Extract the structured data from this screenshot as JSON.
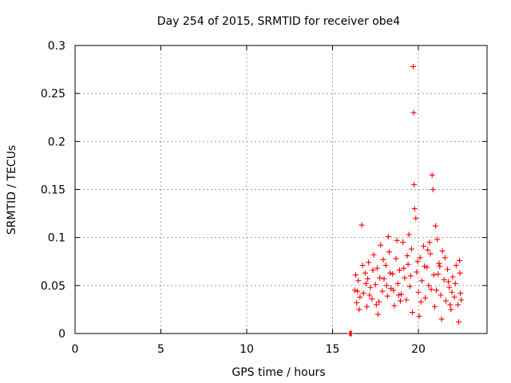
{
  "chart_data": {
    "type": "scatter",
    "title": "Day 254 of 2015, SRMTID for receiver obe4",
    "xlabel": "GPS time / hours",
    "ylabel": "SRMTID / TECUs",
    "xlim": [
      0,
      24
    ],
    "ylim": [
      0,
      0.3
    ],
    "grid": true,
    "marker": "+",
    "color": "#ff0000",
    "xticks": [
      0,
      5,
      10,
      15,
      20
    ],
    "xtick_labels": [
      "0",
      "5",
      "10",
      "15",
      "20"
    ],
    "yticks": [
      0,
      0.05,
      0.1,
      0.15,
      0.2,
      0.25,
      0.3
    ],
    "ytick_labels": [
      "0",
      "0.05",
      "0.1",
      "0.15",
      "0.2",
      "0.25",
      "0.3"
    ],
    "series": [
      {
        "name": "SRMTID",
        "points": [
          [
            16.0,
            0.0
          ],
          [
            16.05,
            0.0
          ],
          [
            16.1,
            0.0
          ],
          [
            16.3,
            0.045
          ],
          [
            16.4,
            0.032
          ],
          [
            16.5,
            0.055
          ],
          [
            16.6,
            0.038
          ],
          [
            16.7,
            0.113
          ],
          [
            16.8,
            0.042
          ],
          [
            16.9,
            0.063
          ],
          [
            17.0,
            0.028
          ],
          [
            17.1,
            0.074
          ],
          [
            17.2,
            0.048
          ],
          [
            17.3,
            0.036
          ],
          [
            17.4,
            0.082
          ],
          [
            17.5,
            0.051
          ],
          [
            17.6,
            0.068
          ],
          [
            17.7,
            0.033
          ],
          [
            17.8,
            0.092
          ],
          [
            17.9,
            0.044
          ],
          [
            18.0,
            0.057
          ],
          [
            18.1,
            0.071
          ],
          [
            18.2,
            0.039
          ],
          [
            18.3,
            0.085
          ],
          [
            18.4,
            0.047
          ],
          [
            18.5,
            0.062
          ],
          [
            18.6,
            0.029
          ],
          [
            18.7,
            0.078
          ],
          [
            18.8,
            0.052
          ],
          [
            18.9,
            0.066
          ],
          [
            19.0,
            0.041
          ],
          [
            19.1,
            0.095
          ],
          [
            19.2,
            0.058
          ],
          [
            19.3,
            0.035
          ],
          [
            19.4,
            0.072
          ],
          [
            19.5,
            0.049
          ],
          [
            19.6,
            0.088
          ],
          [
            19.7,
            0.278
          ],
          [
            19.72,
            0.23
          ],
          [
            19.75,
            0.155
          ],
          [
            19.78,
            0.13
          ],
          [
            19.85,
            0.12
          ],
          [
            19.9,
            0.064
          ],
          [
            20.0,
            0.043
          ],
          [
            20.1,
            0.079
          ],
          [
            20.2,
            0.055
          ],
          [
            20.3,
            0.091
          ],
          [
            20.4,
            0.037
          ],
          [
            20.5,
            0.069
          ],
          [
            20.6,
            0.05
          ],
          [
            20.7,
            0.083
          ],
          [
            20.8,
            0.165
          ],
          [
            20.85,
            0.15
          ],
          [
            20.9,
            0.061
          ],
          [
            21.0,
            0.112
          ],
          [
            21.05,
            0.045
          ],
          [
            21.1,
            0.098
          ],
          [
            21.2,
            0.073
          ],
          [
            21.3,
            0.04
          ],
          [
            21.4,
            0.086
          ],
          [
            21.5,
            0.056
          ],
          [
            21.6,
            0.034
          ],
          [
            21.7,
            0.067
          ],
          [
            21.8,
            0.048
          ],
          [
            21.9,
            0.025
          ],
          [
            22.0,
            0.059
          ],
          [
            22.1,
            0.038
          ],
          [
            22.2,
            0.071
          ],
          [
            22.3,
            0.03
          ],
          [
            22.4,
            0.076
          ],
          [
            22.45,
            0.042
          ],
          [
            22.5,
            0.035
          ],
          [
            16.35,
            0.061
          ],
          [
            16.55,
            0.025
          ],
          [
            16.75,
            0.071
          ],
          [
            16.95,
            0.052
          ],
          [
            17.15,
            0.04
          ],
          [
            17.35,
            0.066
          ],
          [
            17.55,
            0.03
          ],
          [
            17.75,
            0.058
          ],
          [
            17.95,
            0.077
          ],
          [
            18.15,
            0.05
          ],
          [
            18.35,
            0.063
          ],
          [
            18.55,
            0.045
          ],
          [
            18.75,
            0.097
          ],
          [
            18.95,
            0.034
          ],
          [
            19.15,
            0.068
          ],
          [
            19.35,
            0.081
          ],
          [
            19.55,
            0.06
          ],
          [
            19.65,
            0.022
          ],
          [
            19.95,
            0.075
          ],
          [
            20.15,
            0.033
          ],
          [
            20.35,
            0.07
          ],
          [
            20.55,
            0.087
          ],
          [
            20.75,
            0.046
          ],
          [
            20.95,
            0.028
          ],
          [
            21.15,
            0.062
          ],
          [
            21.35,
            0.015
          ],
          [
            21.55,
            0.079
          ],
          [
            21.75,
            0.054
          ],
          [
            21.95,
            0.043
          ],
          [
            22.15,
            0.052
          ],
          [
            22.35,
            0.012
          ],
          [
            22.42,
            0.063
          ],
          [
            16.45,
            0.044
          ],
          [
            17.05,
            0.057
          ],
          [
            17.65,
            0.02
          ],
          [
            18.25,
            0.101
          ],
          [
            18.85,
            0.04
          ],
          [
            19.45,
            0.103
          ],
          [
            20.05,
            0.018
          ],
          [
            20.65,
            0.095
          ],
          [
            21.25,
            0.07
          ],
          [
            21.85,
            0.03
          ]
        ]
      }
    ]
  }
}
